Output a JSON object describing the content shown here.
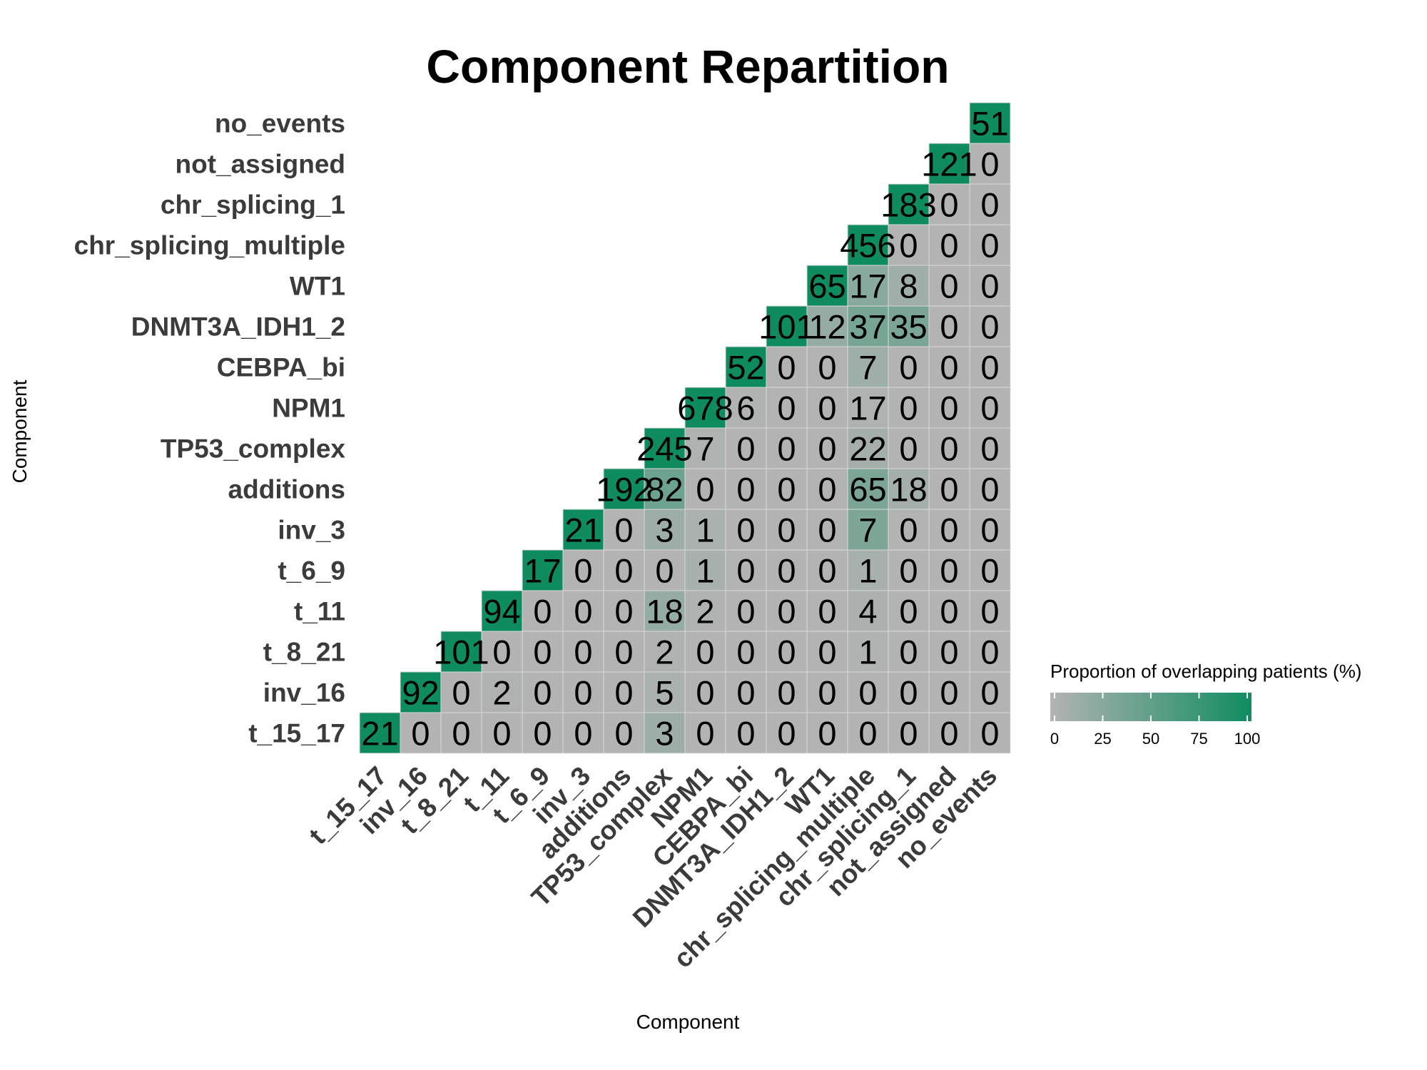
{
  "chart_data": {
    "type": "heatmap",
    "title": "Component Repartition",
    "xlabel": "Component",
    "ylabel": "Component",
    "categories": [
      "t_15_17",
      "inv_16",
      "t_8_21",
      "t_11",
      "t_6_9",
      "inv_3",
      "additions",
      "TP53_complex",
      "NPM1",
      "CEBPA_bi",
      "DNMT3A_IDH1_2",
      "WT1",
      "chr_splicing_multiple",
      "chr_splicing_1",
      "not_assigned",
      "no_events"
    ],
    "counts": [
      [
        21,
        0,
        0,
        0,
        0,
        0,
        0,
        3,
        0,
        0,
        0,
        0,
        0,
        0,
        0,
        0
      ],
      [
        null,
        92,
        0,
        2,
        0,
        0,
        0,
        5,
        0,
        0,
        0,
        0,
        0,
        0,
        0,
        0
      ],
      [
        null,
        null,
        101,
        0,
        0,
        0,
        0,
        2,
        0,
        0,
        0,
        0,
        1,
        0,
        0,
        0
      ],
      [
        null,
        null,
        null,
        94,
        0,
        0,
        0,
        18,
        2,
        0,
        0,
        0,
        4,
        0,
        0,
        0
      ],
      [
        null,
        null,
        null,
        null,
        17,
        0,
        0,
        0,
        1,
        0,
        0,
        0,
        1,
        0,
        0,
        0
      ],
      [
        null,
        null,
        null,
        null,
        null,
        21,
        0,
        3,
        1,
        0,
        0,
        0,
        7,
        0,
        0,
        0
      ],
      [
        null,
        null,
        null,
        null,
        null,
        null,
        192,
        82,
        0,
        0,
        0,
        0,
        65,
        18,
        0,
        0
      ],
      [
        null,
        null,
        null,
        null,
        null,
        null,
        null,
        245,
        7,
        0,
        0,
        0,
        22,
        0,
        0,
        0
      ],
      [
        null,
        null,
        null,
        null,
        null,
        null,
        null,
        null,
        678,
        6,
        0,
        0,
        17,
        0,
        0,
        0
      ],
      [
        null,
        null,
        null,
        null,
        null,
        null,
        null,
        null,
        null,
        52,
        0,
        0,
        7,
        0,
        0,
        0
      ],
      [
        null,
        null,
        null,
        null,
        null,
        null,
        null,
        null,
        null,
        null,
        101,
        12,
        37,
        35,
        0,
        0
      ],
      [
        null,
        null,
        null,
        null,
        null,
        null,
        null,
        null,
        null,
        null,
        null,
        65,
        17,
        8,
        0,
        0
      ],
      [
        null,
        null,
        null,
        null,
        null,
        null,
        null,
        null,
        null,
        null,
        null,
        null,
        456,
        0,
        0,
        0
      ],
      [
        null,
        null,
        null,
        null,
        null,
        null,
        null,
        null,
        null,
        null,
        null,
        null,
        null,
        183,
        0,
        0
      ],
      [
        null,
        null,
        null,
        null,
        null,
        null,
        null,
        null,
        null,
        null,
        null,
        null,
        null,
        null,
        121,
        0
      ],
      [
        null,
        null,
        null,
        null,
        null,
        null,
        null,
        null,
        null,
        null,
        null,
        null,
        null,
        null,
        null,
        51
      ]
    ],
    "proportions": [
      [
        100,
        0,
        0,
        0,
        0,
        0,
        0,
        14,
        0,
        0,
        0,
        0,
        0,
        0,
        0,
        0
      ],
      [
        null,
        100,
        0,
        2,
        0,
        0,
        0,
        5,
        0,
        0,
        0,
        0,
        0,
        0,
        0,
        0
      ],
      [
        null,
        null,
        100,
        0,
        0,
        0,
        0,
        2,
        0,
        0,
        0,
        0,
        1,
        0,
        0,
        0
      ],
      [
        null,
        null,
        null,
        100,
        0,
        0,
        0,
        19,
        2,
        0,
        0,
        0,
        4,
        0,
        0,
        0
      ],
      [
        null,
        null,
        null,
        null,
        100,
        0,
        0,
        0,
        6,
        0,
        0,
        0,
        6,
        0,
        0,
        0
      ],
      [
        null,
        null,
        null,
        null,
        null,
        100,
        0,
        14,
        5,
        0,
        0,
        0,
        33,
        0,
        0,
        0
      ],
      [
        null,
        null,
        null,
        null,
        null,
        null,
        100,
        43,
        0,
        0,
        0,
        0,
        34,
        9,
        0,
        0
      ],
      [
        null,
        null,
        null,
        null,
        null,
        null,
        null,
        100,
        3,
        0,
        0,
        0,
        9,
        0,
        0,
        0
      ],
      [
        null,
        null,
        null,
        null,
        null,
        null,
        null,
        null,
        100,
        1,
        0,
        0,
        3,
        0,
        0,
        0
      ],
      [
        null,
        null,
        null,
        null,
        null,
        null,
        null,
        null,
        null,
        100,
        0,
        0,
        13,
        0,
        0,
        0
      ],
      [
        null,
        null,
        null,
        null,
        null,
        null,
        null,
        null,
        null,
        null,
        100,
        18,
        37,
        35,
        0,
        0
      ],
      [
        null,
        null,
        null,
        null,
        null,
        null,
        null,
        null,
        null,
        null,
        null,
        100,
        26,
        12,
        0,
        0
      ],
      [
        null,
        null,
        null,
        null,
        null,
        null,
        null,
        null,
        null,
        null,
        null,
        null,
        100,
        0,
        0,
        0
      ],
      [
        null,
        null,
        null,
        null,
        null,
        null,
        null,
        null,
        null,
        null,
        null,
        null,
        null,
        100,
        0,
        0
      ],
      [
        null,
        null,
        null,
        null,
        null,
        null,
        null,
        null,
        null,
        null,
        null,
        null,
        null,
        null,
        100,
        0
      ],
      [
        null,
        null,
        null,
        null,
        null,
        null,
        null,
        null,
        null,
        null,
        null,
        null,
        null,
        null,
        null,
        100
      ]
    ],
    "legend": {
      "title": "Proportion of overlapping patients (%)",
      "ticks": [
        "0",
        "25",
        "50",
        "75",
        "100"
      ],
      "range": [
        0,
        100
      ],
      "position": "bottom-right"
    },
    "colors": {
      "low": "#b3b3b3",
      "high": "#0f8c5f",
      "grid": "#d9d9d9"
    },
    "grid": false
  }
}
